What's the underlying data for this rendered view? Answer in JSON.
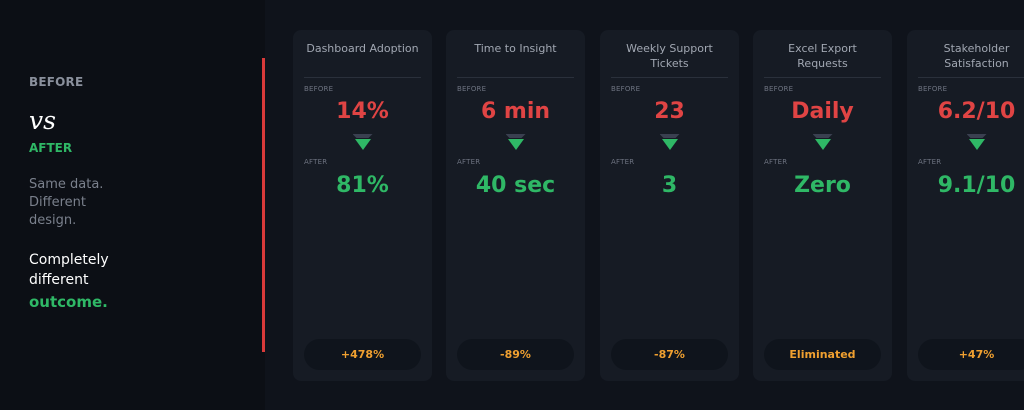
{
  "sidebar": {
    "before_label": "BEFORE",
    "vs_label": "vs",
    "after_label": "AFTER",
    "tagline": "Same data. Different design.",
    "outcome_line1": "Completely different",
    "outcome_highlight": "outcome."
  },
  "cards": [
    {
      "title": "Dashboard Adoption",
      "before_label": "BEFORE",
      "before": "14%",
      "after_label": "AFTER",
      "after": "81%",
      "change": "+478%"
    },
    {
      "title": "Time to Insight",
      "before_label": "BEFORE",
      "before": "6 min",
      "after_label": "AFTER",
      "after": "40 sec",
      "change": "-89%"
    },
    {
      "title": "Weekly Support Tickets",
      "before_label": "BEFORE",
      "before": "23",
      "after_label": "AFTER",
      "after": "3",
      "change": "-87%"
    },
    {
      "title": "Excel Export Requests",
      "before_label": "BEFORE",
      "before": "Daily",
      "after_label": "AFTER",
      "after": "Zero",
      "change": "Eliminated"
    },
    {
      "title": "Stakeholder Satisfaction",
      "before_label": "BEFORE",
      "before": "6.2/10",
      "after_label": "AFTER",
      "after": "9.1/10",
      "change": "+47%"
    }
  ],
  "colors": {
    "before": "#e04444",
    "after": "#2fb866",
    "change": "#f0a030",
    "accent_bar": "#d93a3a"
  }
}
